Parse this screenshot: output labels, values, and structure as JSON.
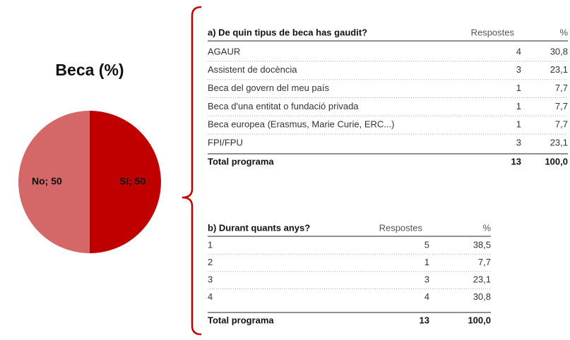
{
  "chart_data": {
    "type": "pie",
    "title": "Beca (%)",
    "categories": [
      "No",
      "Sí"
    ],
    "values": [
      50,
      50
    ],
    "value_labels": [
      "No; 50",
      "Sí; 50"
    ],
    "colors": [
      "#d46868",
      "#c00000"
    ]
  },
  "table_a": {
    "title": "a) De quin tipus de beca has gaudit?",
    "columns": [
      "Respostes",
      "%"
    ],
    "rows": [
      [
        "AGAUR",
        4,
        "30,8"
      ],
      [
        "Assistent de docència",
        3,
        "23,1"
      ],
      [
        "Beca del govern del meu país",
        1,
        "7,7"
      ],
      [
        "Beca d'una entitat o fundació privada",
        1,
        "7,7"
      ],
      [
        "Beca europea (Erasmus, Marie Curie, ERC...)",
        1,
        "7,7"
      ],
      [
        "FPI/FPU",
        3,
        "23,1"
      ]
    ],
    "total": [
      "Total programa",
      13,
      "100,0"
    ]
  },
  "table_b": {
    "title": "b) Durant quants anys?",
    "columns": [
      "Respostes",
      "%"
    ],
    "rows": [
      [
        "1",
        5,
        "38,5"
      ],
      [
        "2",
        1,
        "7,7"
      ],
      [
        "3",
        3,
        "23,1"
      ],
      [
        "4",
        4,
        "30,8"
      ]
    ],
    "total": [
      "Total programa",
      13,
      "100,0"
    ]
  }
}
